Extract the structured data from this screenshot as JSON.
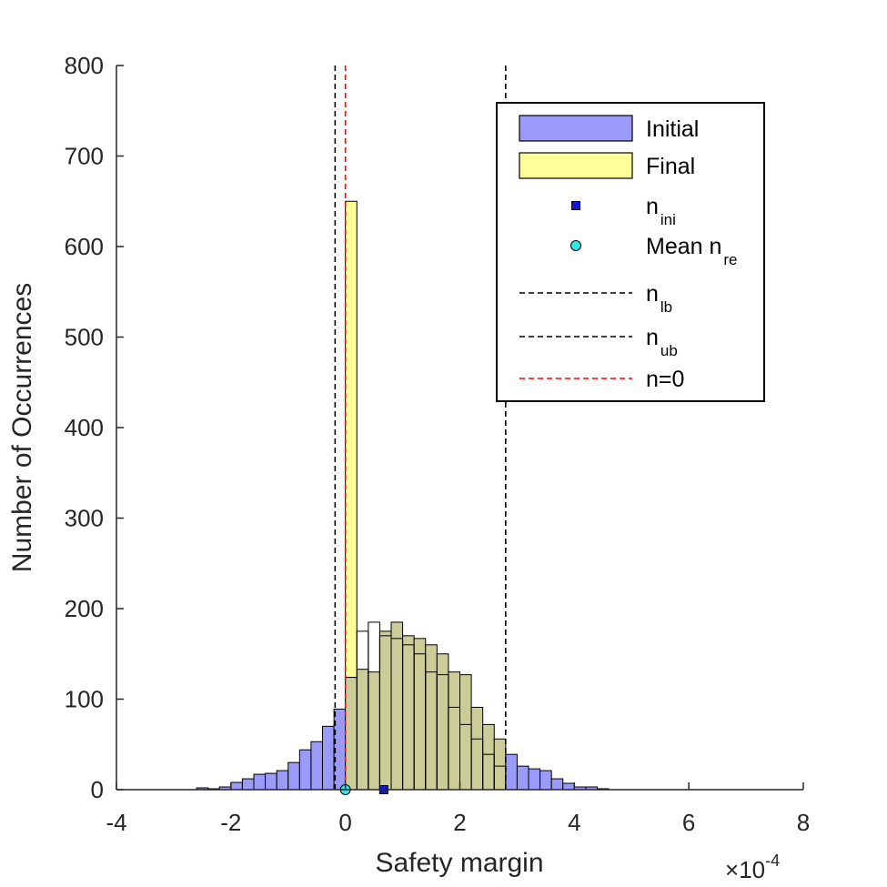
{
  "chart_data": {
    "type": "histogram",
    "title": "",
    "xlabel": "Safety margin",
    "ylabel": "Number of Occurrences",
    "x_exponent": {
      "base": "10",
      "power": "-4"
    },
    "xlim": [
      -4,
      8
    ],
    "ylim": [
      0,
      800
    ],
    "xticks": [
      "-4",
      "-2",
      "0",
      "2",
      "4",
      "6",
      "8"
    ],
    "yticks": [
      "0",
      "100",
      "200",
      "300",
      "400",
      "500",
      "600",
      "700",
      "800"
    ],
    "bin_width": 0.2,
    "grid": false,
    "legend_position": "top-right",
    "series": [
      {
        "name": "Initial",
        "color": "#9a9af8",
        "edge": "#000000",
        "bins_start": -2.6,
        "values": [
          2,
          1,
          3,
          8,
          12,
          17,
          18,
          21,
          30,
          44,
          53,
          70,
          89,
          124,
          133,
          130,
          175,
          185,
          170,
          167,
          160,
          150,
          130,
          127,
          91,
          72,
          56,
          39,
          26,
          23,
          21,
          12,
          7,
          3,
          3,
          1
        ]
      },
      {
        "name": "Final",
        "color": "#ffff99",
        "edge": "#000000",
        "bins": [
          {
            "x": 0.0,
            "count": 650
          },
          {
            "x": 0.2,
            "count": 175
          },
          {
            "x": 0.4,
            "count": 185
          },
          {
            "x": 0.6,
            "count": 170
          },
          {
            "x": 0.8,
            "count": 167
          },
          {
            "x": 1.0,
            "count": 160
          },
          {
            "x": 1.2,
            "count": 150
          },
          {
            "x": 1.4,
            "count": 130
          },
          {
            "x": 1.6,
            "count": 127
          },
          {
            "x": 1.8,
            "count": 91
          },
          {
            "x": 2.0,
            "count": 72
          },
          {
            "x": 2.2,
            "count": 56
          },
          {
            "x": 2.4,
            "count": 39
          },
          {
            "x": 2.6,
            "count": 26
          }
        ]
      }
    ],
    "overlap_color": "#cccc99",
    "n_ini": {
      "label": "n",
      "sub": "ini",
      "x": 0.67,
      "y": 0,
      "color": "#1515d9"
    },
    "mean_n_re": {
      "label": "Mean n",
      "sub": "re",
      "x": 0.0,
      "y": 0,
      "color": "#33e6e6"
    },
    "n_lb": {
      "label": "n",
      "sub": "lb",
      "x": -0.18,
      "color": "#000000",
      "style": "dashed"
    },
    "n_ub": {
      "label": "n",
      "sub": "ub",
      "x": 2.8,
      "color": "#000000",
      "style": "dashed"
    },
    "n_zero": {
      "label": "n=0",
      "x": 0.0,
      "color": "#ff0000",
      "style": "dashed"
    },
    "legend": [
      {
        "key": "initial",
        "label": "Initial",
        "sub": ""
      },
      {
        "key": "final",
        "label": "Final",
        "sub": ""
      },
      {
        "key": "n_ini",
        "label": "n",
        "sub": "ini"
      },
      {
        "key": "mean",
        "label": "Mean n",
        "sub": "re"
      },
      {
        "key": "n_lb",
        "label": "n",
        "sub": "lb"
      },
      {
        "key": "n_ub",
        "label": "n",
        "sub": "ub"
      },
      {
        "key": "n_zero",
        "label": "n=0",
        "sub": ""
      }
    ]
  }
}
